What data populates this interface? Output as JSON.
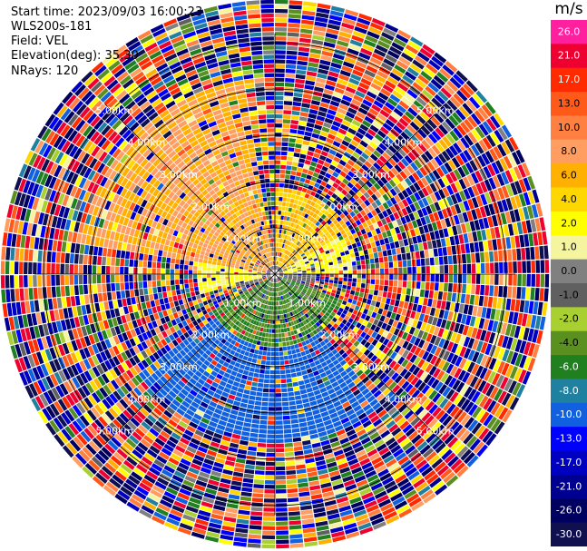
{
  "header": {
    "start_time": "Start time: 2023/09/03 16:00:23",
    "instrument": "WLS200s-181",
    "field": "Field: VEL",
    "elevation": "Elevation(deg): 35.30",
    "nrays": "NRays: 120"
  },
  "colorbar": {
    "unit": "m/s",
    "levels": [
      "26.0",
      "21.0",
      "17.0",
      "13.0",
      "10.0",
      "8.0",
      "6.0",
      "4.0",
      "2.0",
      "1.0",
      "0.0",
      "-1.0",
      "-2.0",
      "-4.0",
      "-6.0",
      "-8.0",
      "-10.0",
      "-13.0",
      "-17.0",
      "-21.0",
      "-26.0",
      "-30.0"
    ],
    "colors": [
      "#ff1f9f",
      "#ee0030",
      "#ff2a00",
      "#ff5a1a",
      "#ff8040",
      "#ff9e60",
      "#ffb000",
      "#ffd700",
      "#ffff00",
      "#f5f5a0",
      "#808080",
      "#606060",
      "#a8d030",
      "#5a9020",
      "#208020",
      "#2080a0",
      "#1060e0",
      "#0000ff",
      "#0000c0",
      "#000090",
      "#000060",
      "#101050"
    ]
  },
  "chart_data": {
    "type": "heatmap",
    "projection": "polar-ppi",
    "field": "VEL",
    "units": "m/s",
    "elevation_deg": 35.3,
    "n_rays": 120,
    "range_rings_km": [
      1.0,
      2.0,
      3.0,
      4.0,
      5.0
    ],
    "range_labels": [
      "1.00km",
      "2.00km",
      "3.00km",
      "4.00km",
      "5.00km"
    ],
    "sectors": [
      {
        "azimuth_deg": [
          280,
          350
        ],
        "range_km": [
          0.1,
          4.2
        ],
        "value_range": [
          6.0,
          10.0
        ]
      },
      {
        "azimuth_deg": [
          255,
          290
        ],
        "range_km": [
          0.1,
          1.6
        ],
        "value_range": [
          1.0,
          4.0
        ]
      },
      {
        "azimuth_deg": [
          60,
          90
        ],
        "range_km": [
          0.1,
          1.6
        ],
        "value_range": [
          1.0,
          4.0
        ]
      },
      {
        "azimuth_deg": [
          0,
          70
        ],
        "range_km": [
          0.1,
          1.8
        ],
        "value_range": [
          4.0,
          8.0
        ]
      },
      {
        "azimuth_deg": [
          90,
          110
        ],
        "range_km": [
          0.1,
          0.8
        ],
        "value_range": [
          -1.0,
          0.0
        ]
      },
      {
        "azimuth_deg": [
          110,
          240
        ],
        "range_km": [
          0.1,
          1.5
        ],
        "value_range": [
          -6.0,
          -2.0
        ]
      },
      {
        "azimuth_deg": [
          140,
          235
        ],
        "range_km": [
          1.5,
          3.6
        ],
        "value_range": [
          -10.0,
          -8.0
        ]
      }
    ]
  }
}
